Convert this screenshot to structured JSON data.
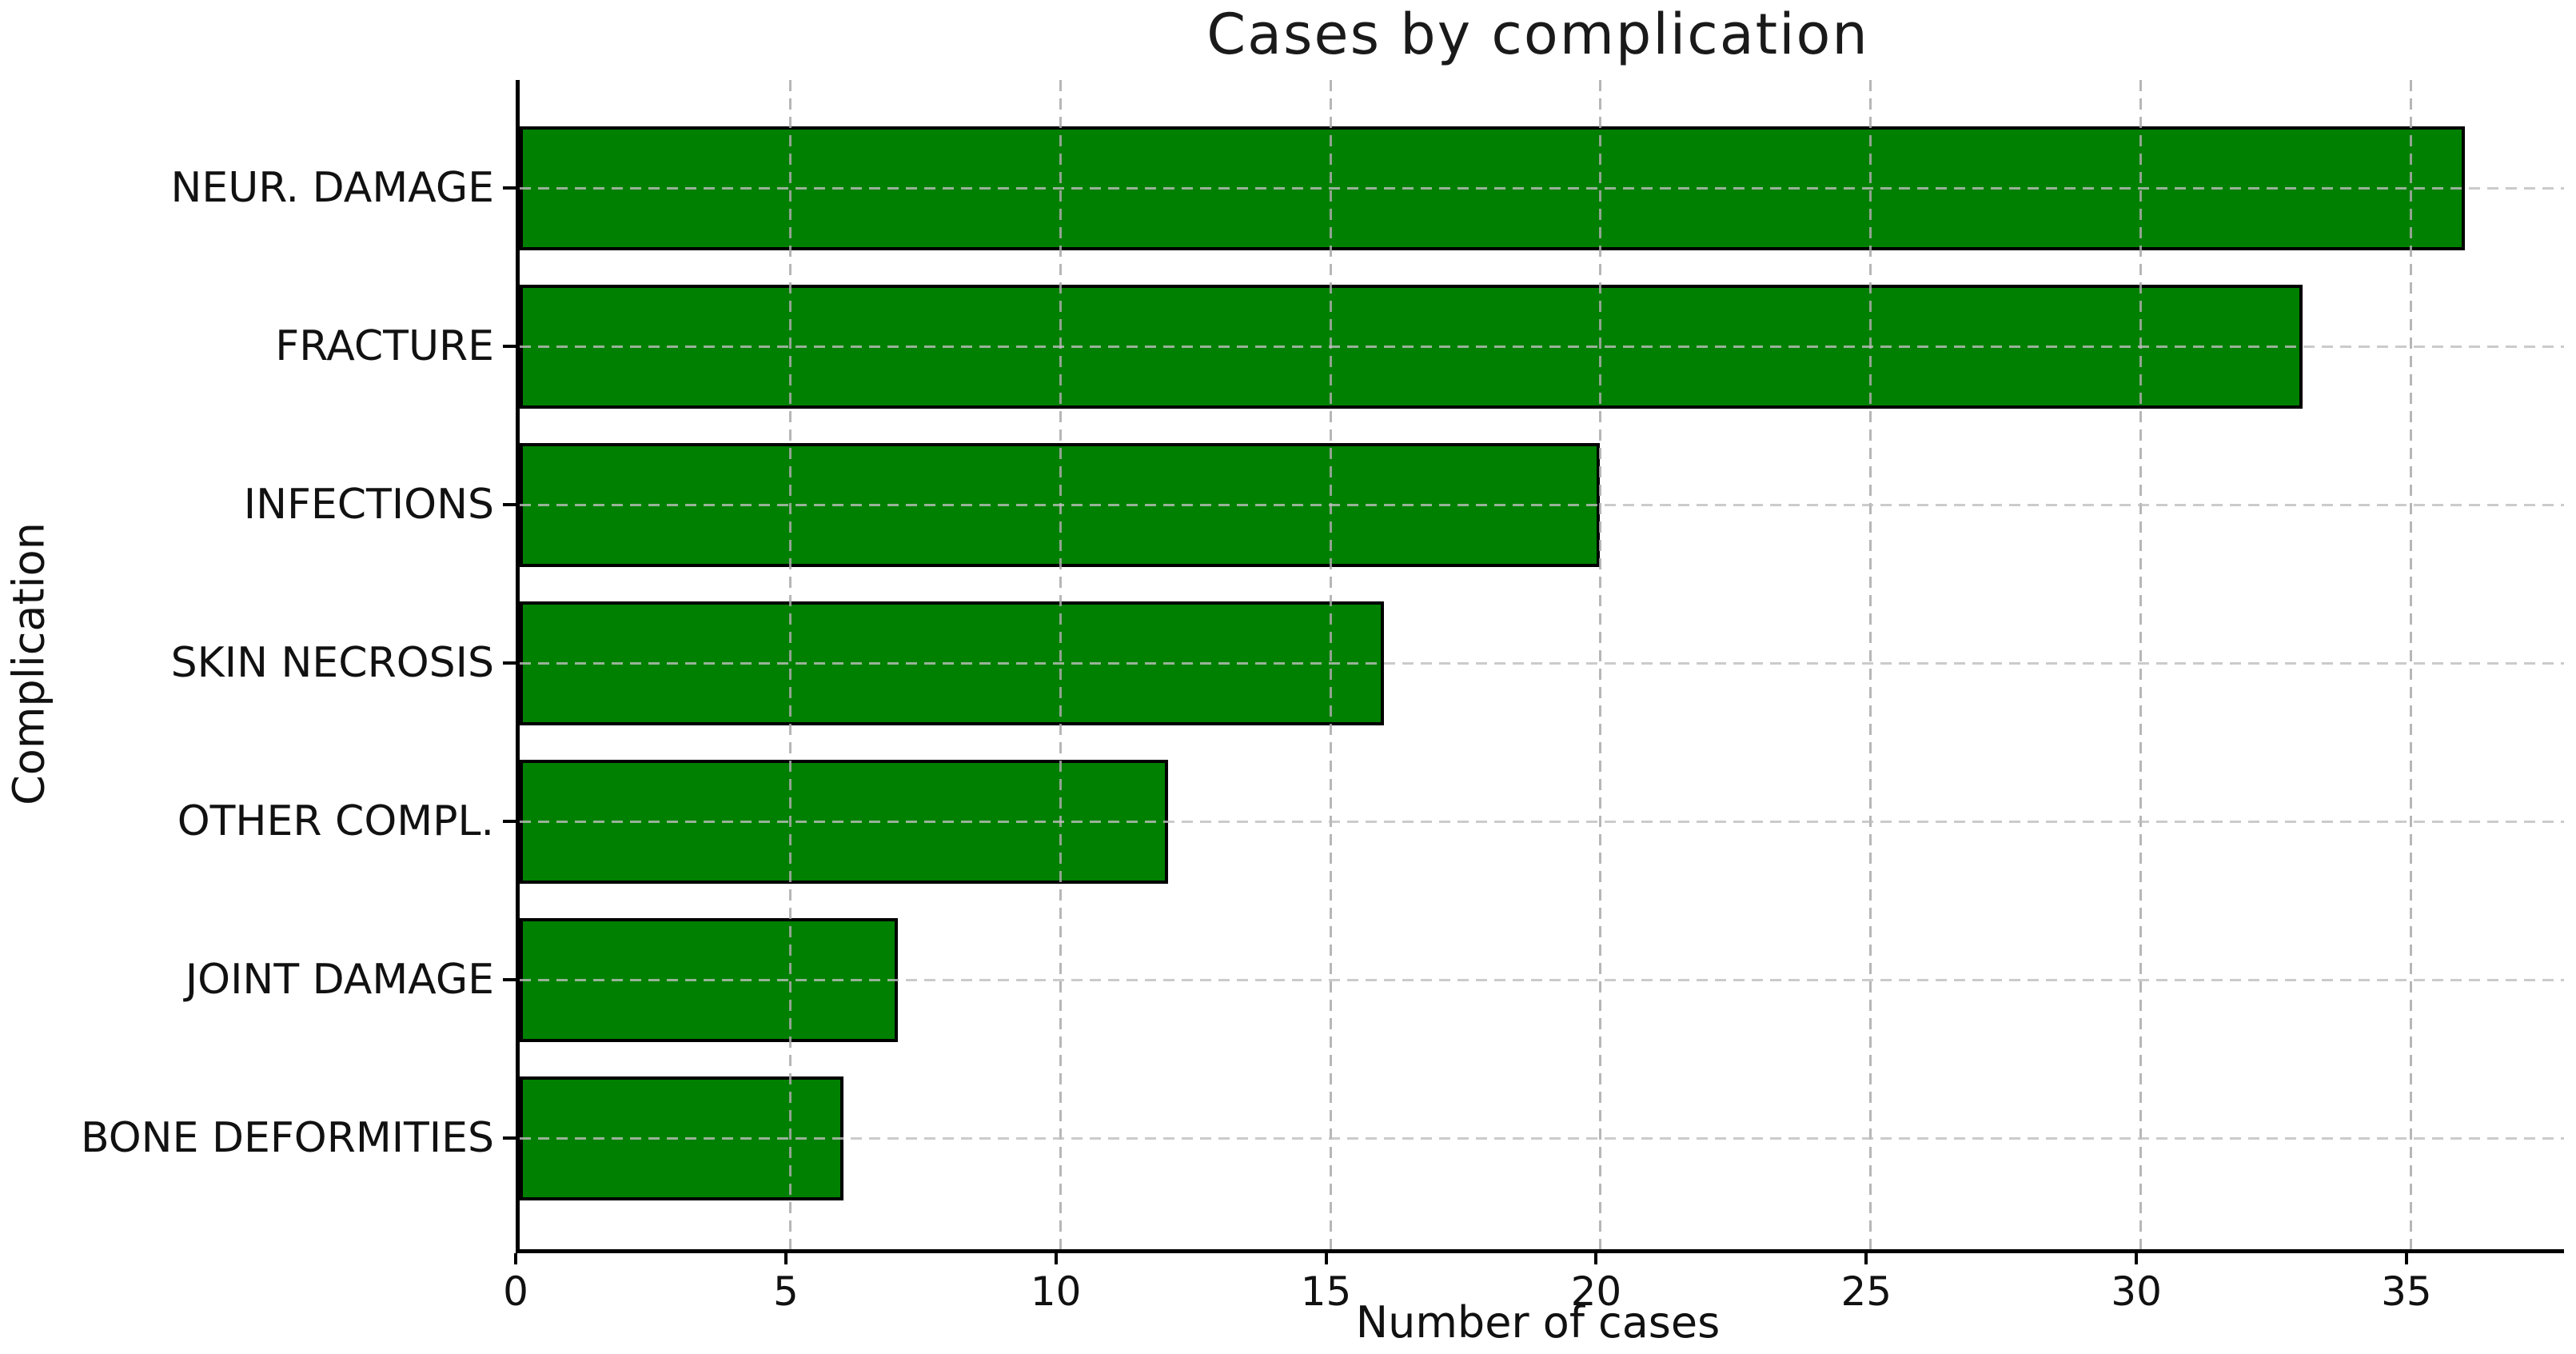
{
  "chart_data": {
    "type": "bar",
    "orientation": "horizontal",
    "title": "Cases by complication",
    "xlabel": "Number of cases",
    "ylabel": "Complication",
    "categories": [
      "NEUR. DAMAGE",
      "FRACTURE",
      "INFECTIONS",
      "SKIN NECROSIS",
      "OTHER COMPL.",
      "JOINT DAMAGE",
      "BONE DEFORMITIES"
    ],
    "values": [
      36,
      33,
      20,
      16,
      12,
      7,
      6
    ],
    "x_ticks": [
      0,
      5,
      10,
      15,
      20,
      25,
      30,
      35
    ],
    "xlim": [
      0,
      37.8
    ],
    "grid": "dashed, on both axes",
    "legend": "none",
    "colors": {
      "bar_fill": "#008000",
      "bar_edge": "#000000",
      "grid": "#b0b0b0",
      "axis": "#000000",
      "text": "#111111"
    }
  }
}
